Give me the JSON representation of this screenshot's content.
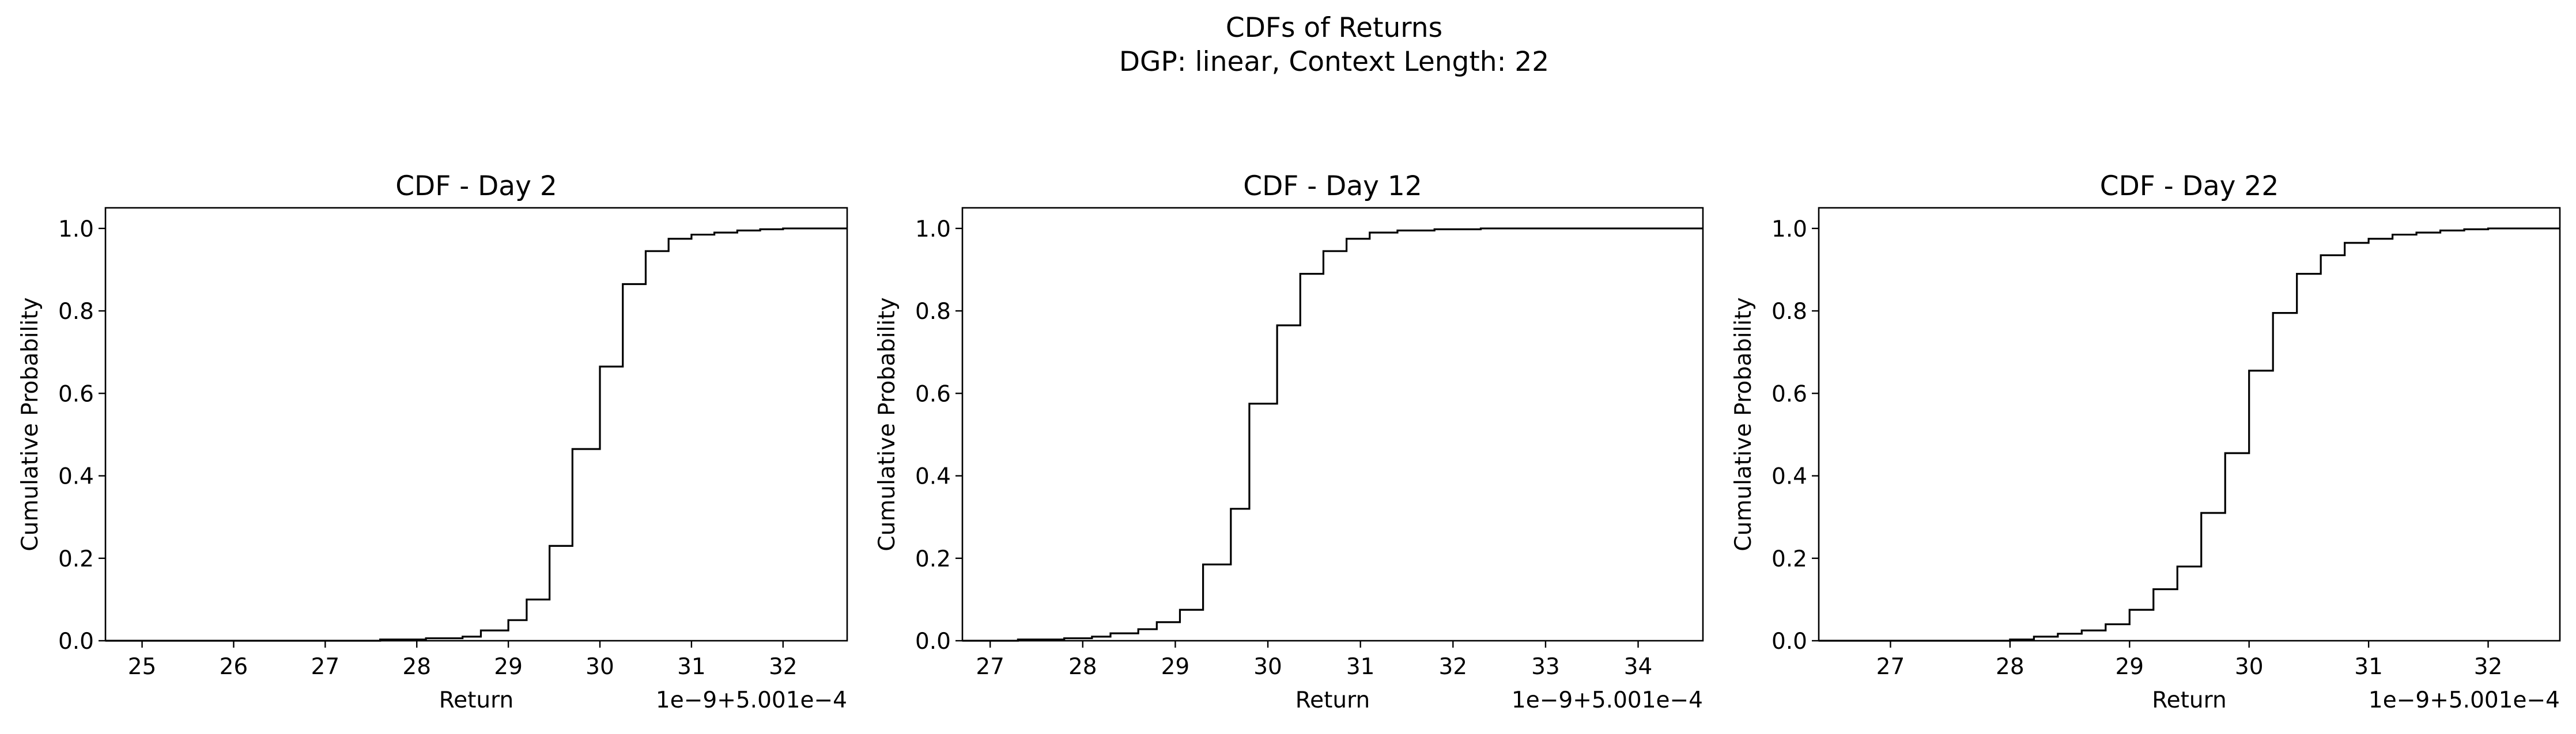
{
  "figure": {
    "title_line1": "CDFs of Returns",
    "title_line2": "DGP: linear, Context Length: 22"
  },
  "colors": {
    "line": "#000000",
    "axes": "#000000",
    "background": "#ffffff"
  },
  "chart_data": [
    {
      "type": "line",
      "drawstyle": "steps-post",
      "title": "CDF - Day 2",
      "xlabel": "Return",
      "ylabel": "Cumulative Probability",
      "offset_text": "1e−9+5.001e−4",
      "xlim": [
        24.6,
        32.7
      ],
      "ylim": [
        0.0,
        1.05
      ],
      "xticks": [
        25,
        26,
        27,
        28,
        29,
        30,
        31,
        32
      ],
      "yticks": [
        0.0,
        0.2,
        0.4,
        0.6,
        0.8,
        1.0
      ],
      "x": [
        24.6,
        27.6,
        28.1,
        28.5,
        28.7,
        29.0,
        29.2,
        29.45,
        29.7,
        30.0,
        30.25,
        30.5,
        30.75,
        31.0,
        31.25,
        31.5,
        31.75,
        32.0,
        32.5
      ],
      "y": [
        0.0,
        0.003,
        0.006,
        0.01,
        0.025,
        0.05,
        0.1,
        0.23,
        0.465,
        0.665,
        0.865,
        0.945,
        0.975,
        0.985,
        0.99,
        0.995,
        0.998,
        1.0,
        1.0
      ]
    },
    {
      "type": "line",
      "drawstyle": "steps-post",
      "title": "CDF - Day 12",
      "xlabel": "Return",
      "ylabel": "Cumulative Probability",
      "offset_text": "1e−9+5.001e−4",
      "xlim": [
        26.7,
        34.7
      ],
      "ylim": [
        0.0,
        1.05
      ],
      "xticks": [
        27,
        28,
        29,
        30,
        31,
        32,
        33,
        34
      ],
      "yticks": [
        0.0,
        0.2,
        0.4,
        0.6,
        0.8,
        1.0
      ],
      "x": [
        26.7,
        27.3,
        27.8,
        28.1,
        28.3,
        28.6,
        28.8,
        29.05,
        29.3,
        29.6,
        29.8,
        30.1,
        30.35,
        30.6,
        30.85,
        31.1,
        31.4,
        31.8,
        32.3,
        34.5
      ],
      "y": [
        0.0,
        0.003,
        0.006,
        0.01,
        0.018,
        0.028,
        0.045,
        0.075,
        0.185,
        0.32,
        0.575,
        0.765,
        0.89,
        0.945,
        0.975,
        0.99,
        0.995,
        0.998,
        1.0,
        1.0
      ]
    },
    {
      "type": "line",
      "drawstyle": "steps-post",
      "title": "CDF - Day 22",
      "xlabel": "Return",
      "ylabel": "Cumulative Probability",
      "offset_text": "1e−9+5.001e−4",
      "xlim": [
        26.4,
        32.6
      ],
      "ylim": [
        0.0,
        1.05
      ],
      "xticks": [
        27,
        28,
        29,
        30,
        31,
        32
      ],
      "yticks": [
        0.0,
        0.2,
        0.4,
        0.6,
        0.8,
        1.0
      ],
      "x": [
        26.4,
        28.0,
        28.2,
        28.4,
        28.6,
        28.8,
        29.0,
        29.2,
        29.4,
        29.6,
        29.8,
        30.0,
        30.2,
        30.4,
        30.6,
        30.8,
        31.0,
        31.2,
        31.4,
        31.6,
        31.8,
        32.0,
        32.4
      ],
      "y": [
        0.0,
        0.003,
        0.01,
        0.017,
        0.025,
        0.04,
        0.075,
        0.125,
        0.18,
        0.31,
        0.455,
        0.655,
        0.795,
        0.89,
        0.935,
        0.965,
        0.975,
        0.985,
        0.99,
        0.995,
        0.998,
        1.0,
        1.0
      ]
    }
  ]
}
